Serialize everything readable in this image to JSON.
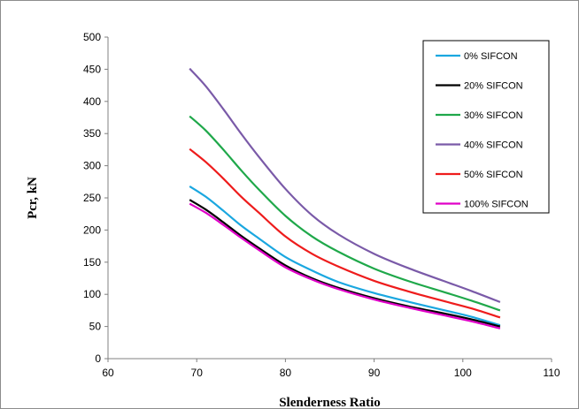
{
  "chart_data": {
    "type": "line",
    "title": "",
    "xlabel": "Slenderness Ratio",
    "ylabel": "Pcr, kN",
    "xlim": [
      60,
      110
    ],
    "ylim": [
      0,
      500
    ],
    "xticks": [
      "60",
      "70",
      "80",
      "90",
      "100",
      "110"
    ],
    "yticks": [
      "0",
      "50",
      "100",
      "150",
      "200",
      "250",
      "300",
      "350",
      "400",
      "450",
      "500"
    ],
    "grid": false,
    "legend_position": "top-right",
    "series": [
      {
        "name": "0% SIFCON",
        "color": "#1aa7e0",
        "x": [
          69.2,
          71,
          73,
          75,
          77,
          80,
          83,
          86,
          90,
          94,
          98,
          101,
          104.2
        ],
        "y": [
          268,
          252,
          230,
          207,
          187,
          158,
          137,
          119,
          102,
          88,
          75,
          65,
          52
        ]
      },
      {
        "name": "20% SIFCON",
        "color": "#000000",
        "x": [
          69.2,
          71,
          73,
          75,
          77,
          80,
          83,
          86,
          90,
          94,
          98,
          101,
          104.2
        ],
        "y": [
          247,
          232,
          212,
          191,
          172,
          145,
          125,
          110,
          94,
          81,
          70,
          61,
          50
        ]
      },
      {
        "name": "30% SIFCON",
        "color": "#1fa84a",
        "x": [
          69.2,
          71,
          73,
          75,
          77,
          80,
          83,
          86,
          90,
          94,
          98,
          101,
          104.2
        ],
        "y": [
          377,
          355,
          325,
          293,
          263,
          222,
          190,
          166,
          140,
          120,
          103,
          90,
          75
        ]
      },
      {
        "name": "40% SIFCON",
        "color": "#7a5aa8",
        "x": [
          69.2,
          71,
          73,
          75,
          77,
          80,
          83,
          86,
          90,
          94,
          98,
          101,
          104.2
        ],
        "y": [
          451,
          424,
          388,
          350,
          314,
          264,
          223,
          193,
          163,
          140,
          120,
          105,
          88
        ]
      },
      {
        "name": "50% SIFCON",
        "color": "#ee1c1c",
        "x": [
          69.2,
          71,
          73,
          75,
          77,
          80,
          83,
          86,
          90,
          94,
          98,
          101,
          104.2
        ],
        "y": [
          326,
          306,
          280,
          252,
          227,
          190,
          163,
          143,
          121,
          104,
          89,
          78,
          64
        ]
      },
      {
        "name": "100% SIFCON",
        "color": "#e000c8",
        "x": [
          69.2,
          71,
          73,
          75,
          77,
          80,
          83,
          86,
          90,
          94,
          98,
          101,
          104.2
        ],
        "y": [
          241,
          227,
          208,
          188,
          169,
          142,
          123,
          108,
          92,
          79,
          67,
          58,
          47
        ]
      }
    ]
  }
}
